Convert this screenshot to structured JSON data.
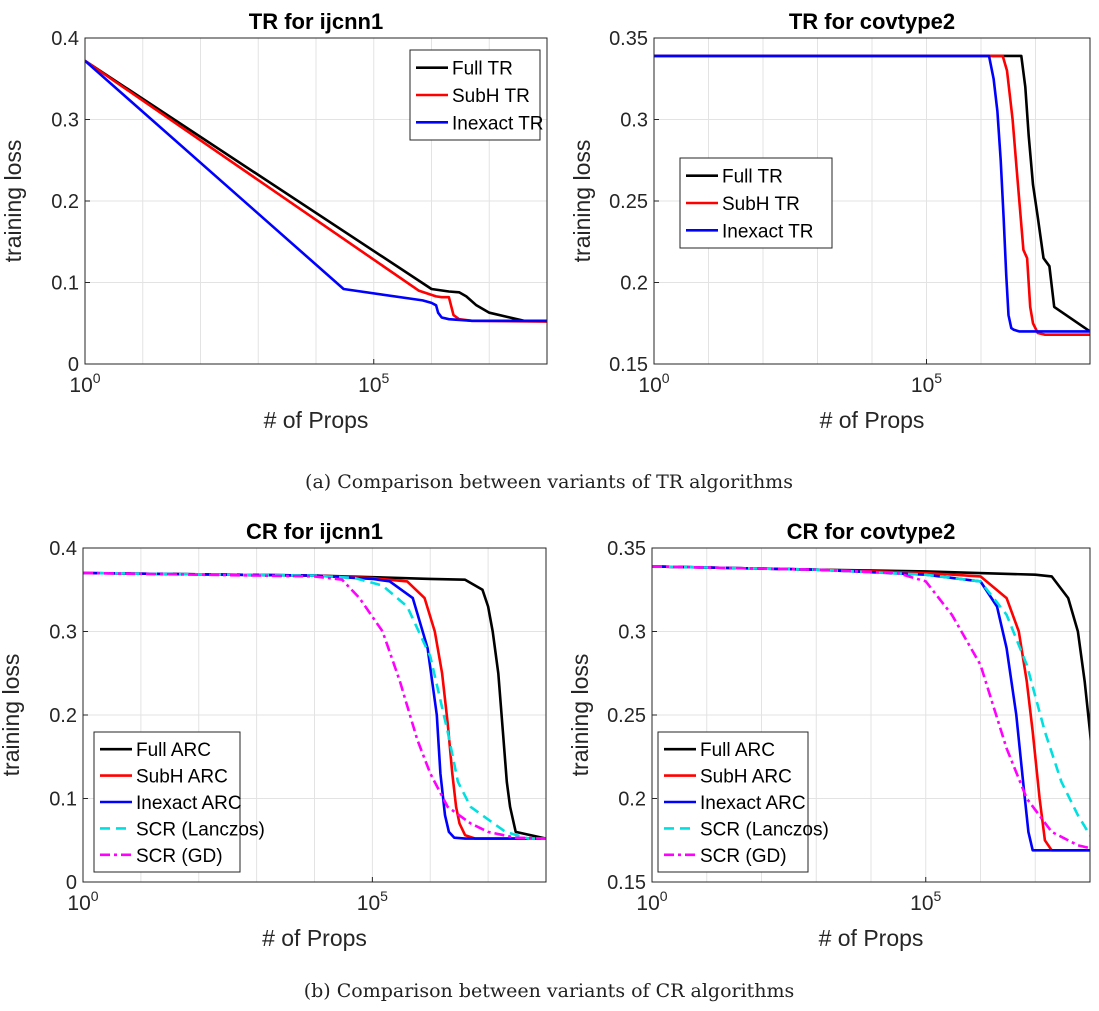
{
  "captions": {
    "a": "(a) Comparison between variants of TR algorithms",
    "b": "(b) Comparison between variants of CR algorithms"
  },
  "chart_data": [
    {
      "type": "line",
      "title": "TR for ijcnn1",
      "xlabel": "# of Props",
      "ylabel": "training loss",
      "xscale": "log",
      "xlim": [
        1,
        100000000
      ],
      "ylim": [
        0,
        0.4
      ],
      "xticks": [
        {
          "v": 1,
          "base": "10",
          "exp": "0"
        },
        {
          "v": 100000,
          "base": "10",
          "exp": "5"
        }
      ],
      "yticks": [
        "0",
        "0.1",
        "0.2",
        "0.3",
        "0.4"
      ],
      "grid": true,
      "legend": "top-right",
      "series": [
        {
          "name": "Full TR",
          "color": "#000000",
          "dash": "",
          "x": [
            1,
            1000000,
            2000000,
            3000000,
            4000000,
            6000000,
            10000000,
            40000000,
            100000000
          ],
          "y": [
            0.372,
            0.092,
            0.089,
            0.088,
            0.083,
            0.072,
            0.063,
            0.053,
            0.053
          ]
        },
        {
          "name": "SubH TR",
          "color": "#ff0000",
          "dash": "",
          "x": [
            1,
            600000,
            1200000,
            1500000,
            2000000,
            2400000,
            3000000,
            5000000,
            100000000
          ],
          "y": [
            0.372,
            0.09,
            0.083,
            0.082,
            0.082,
            0.06,
            0.055,
            0.053,
            0.052
          ]
        },
        {
          "name": "Inexact TR",
          "color": "#0000ff",
          "dash": "",
          "x": [
            1,
            30000,
            700000,
            1000000,
            1200000,
            1300000,
            1500000,
            2000000,
            5000000,
            100000000
          ],
          "y": [
            0.372,
            0.092,
            0.078,
            0.075,
            0.072,
            0.063,
            0.057,
            0.055,
            0.053,
            0.053
          ]
        }
      ]
    },
    {
      "type": "line",
      "title": "TR for covtype2",
      "xlabel": "# of Props",
      "ylabel": "training loss",
      "xscale": "log",
      "xlim": [
        1,
        100000000
      ],
      "ylim": [
        0.15,
        0.35
      ],
      "xticks": [
        {
          "v": 1,
          "base": "10",
          "exp": "0"
        },
        {
          "v": 100000,
          "base": "10",
          "exp": "5"
        }
      ],
      "yticks": [
        "0.15",
        "0.2",
        "0.25",
        "0.3",
        "0.35"
      ],
      "grid": true,
      "legend": "center-left",
      "series": [
        {
          "name": "Full TR",
          "color": "#000000",
          "dash": "",
          "x": [
            1,
            4000000,
            5500000,
            6500000,
            7500000,
            9000000,
            11000000,
            14000000,
            18000000,
            22000000,
            100000000,
            200000000
          ],
          "y": [
            0.339,
            0.339,
            0.339,
            0.32,
            0.29,
            0.26,
            0.24,
            0.215,
            0.21,
            0.185,
            0.17,
            0.17
          ]
        },
        {
          "name": "SubH TR",
          "color": "#ff0000",
          "dash": "",
          "x": [
            1,
            2000000,
            2500000,
            3000000,
            3800000,
            4500000,
            5200000,
            6000000,
            7000000,
            8000000,
            9000000,
            11000000,
            15000000,
            200000000
          ],
          "y": [
            0.339,
            0.339,
            0.339,
            0.33,
            0.3,
            0.27,
            0.245,
            0.22,
            0.215,
            0.185,
            0.175,
            0.169,
            0.168,
            0.168
          ]
        },
        {
          "name": "Inexact TR",
          "color": "#0000ff",
          "dash": "",
          "x": [
            1,
            1400000,
            1700000,
            2000000,
            2300000,
            2600000,
            2900000,
            3200000,
            3600000,
            4000000,
            5000000,
            7000000,
            200000000
          ],
          "y": [
            0.339,
            0.339,
            0.325,
            0.305,
            0.275,
            0.24,
            0.205,
            0.18,
            0.172,
            0.171,
            0.17,
            0.17,
            0.17
          ]
        }
      ]
    },
    {
      "type": "line",
      "title": "CR for ijcnn1",
      "xlabel": "# of Props",
      "ylabel": "training loss",
      "xscale": "log",
      "xlim": [
        1,
        100000000
      ],
      "ylim": [
        0,
        0.4
      ],
      "xticks": [
        {
          "v": 1,
          "base": "10",
          "exp": "0"
        },
        {
          "v": 100000,
          "base": "10",
          "exp": "5"
        }
      ],
      "yticks": [
        "0",
        "0.1",
        "0.2",
        "0.3",
        "0.4"
      ],
      "grid": true,
      "legend": "bottom-left",
      "series": [
        {
          "name": "Full ARC",
          "color": "#000000",
          "dash": "",
          "x": [
            1,
            10000,
            100000,
            1000000,
            4000000,
            8000000,
            10000000,
            12000000,
            15000000,
            18000000,
            21000000,
            24000000,
            30000000,
            100000000
          ],
          "y": [
            0.37,
            0.367,
            0.365,
            0.363,
            0.362,
            0.35,
            0.33,
            0.3,
            0.25,
            0.18,
            0.12,
            0.09,
            0.06,
            0.052
          ]
        },
        {
          "name": "SubH ARC",
          "color": "#ff0000",
          "dash": "",
          "x": [
            1,
            10000,
            100000,
            400000,
            800000,
            1200000,
            1600000,
            2000000,
            2400000,
            2800000,
            3200000,
            4000000,
            6000000,
            100000000
          ],
          "y": [
            0.37,
            0.367,
            0.364,
            0.36,
            0.34,
            0.3,
            0.25,
            0.19,
            0.13,
            0.09,
            0.07,
            0.056,
            0.052,
            0.052
          ]
        },
        {
          "name": "Inexact ARC",
          "color": "#0000ff",
          "dash": "",
          "x": [
            1,
            10000,
            100000,
            200000,
            500000,
            900000,
            1300000,
            1500000,
            1800000,
            2100000,
            2600000,
            4000000,
            100000000
          ],
          "y": [
            0.37,
            0.367,
            0.363,
            0.36,
            0.34,
            0.28,
            0.2,
            0.13,
            0.08,
            0.06,
            0.053,
            0.052,
            0.052
          ]
        },
        {
          "name": "SCR (Lanczos)",
          "color": "#00e0e0",
          "dash": "10 6",
          "x": [
            1,
            10000,
            50000,
            150000,
            400000,
            1000000,
            2000000,
            3000000,
            5000000,
            10000000,
            20000000,
            50000000,
            100000000
          ],
          "y": [
            0.37,
            0.367,
            0.364,
            0.355,
            0.33,
            0.27,
            0.18,
            0.12,
            0.09,
            0.075,
            0.06,
            0.052,
            0.052
          ]
        },
        {
          "name": "SCR (GD)",
          "color": "#ff00ff",
          "dash": "10 4 3 4",
          "x": [
            1,
            10000,
            30000,
            60000,
            150000,
            300000,
            600000,
            1000000,
            2000000,
            5000000,
            10000000,
            30000000,
            100000000
          ],
          "y": [
            0.37,
            0.366,
            0.362,
            0.34,
            0.3,
            0.24,
            0.17,
            0.13,
            0.09,
            0.07,
            0.06,
            0.053,
            0.052
          ]
        }
      ]
    },
    {
      "type": "line",
      "title": "CR for covtype2",
      "xlabel": "# of Props",
      "ylabel": "training loss",
      "xscale": "log",
      "xlim": [
        1,
        100000000
      ],
      "ylim": [
        0.15,
        0.35
      ],
      "xticks": [
        {
          "v": 1,
          "base": "10",
          "exp": "0"
        },
        {
          "v": 100000,
          "base": "10",
          "exp": "5"
        }
      ],
      "yticks": [
        "0.15",
        "0.2",
        "0.25",
        "0.3",
        "0.35"
      ],
      "grid": true,
      "legend": "bottom-left",
      "series": [
        {
          "name": "Full ARC",
          "color": "#000000",
          "dash": "",
          "x": [
            1,
            1000,
            100000,
            10000000,
            20000000,
            40000000,
            60000000,
            80000000,
            100000000,
            120000000,
            150000000,
            200000000
          ],
          "y": [
            0.339,
            0.337,
            0.336,
            0.334,
            0.333,
            0.32,
            0.3,
            0.27,
            0.24,
            0.21,
            0.18,
            0.17
          ]
        },
        {
          "name": "SubH ARC",
          "color": "#ff0000",
          "dash": "",
          "x": [
            1,
            1000,
            100000,
            1000000,
            3000000,
            5000000,
            7000000,
            9000000,
            12000000,
            15000000,
            20000000,
            200000000
          ],
          "y": [
            0.339,
            0.337,
            0.335,
            0.333,
            0.32,
            0.3,
            0.27,
            0.24,
            0.2,
            0.175,
            0.169,
            0.169
          ]
        },
        {
          "name": "Inexact ARC",
          "color": "#0000ff",
          "dash": "",
          "x": [
            1,
            1000,
            100000,
            1000000,
            2000000,
            3000000,
            4500000,
            6000000,
            7500000,
            9000000,
            200000000
          ],
          "y": [
            0.339,
            0.337,
            0.334,
            0.33,
            0.315,
            0.29,
            0.25,
            0.21,
            0.18,
            0.169,
            0.169
          ]
        },
        {
          "name": "SCR (Lanczos)",
          "color": "#00e0e0",
          "dash": "10 6",
          "x": [
            1,
            1000,
            100000,
            1000000,
            3000000,
            7000000,
            15000000,
            30000000,
            60000000,
            100000000,
            200000000
          ],
          "y": [
            0.339,
            0.337,
            0.334,
            0.33,
            0.31,
            0.28,
            0.24,
            0.21,
            0.19,
            0.178,
            0.169
          ]
        },
        {
          "name": "SCR (GD)",
          "color": "#ff00ff",
          "dash": "10 4 3 4",
          "x": [
            1,
            1000,
            30000,
            100000,
            300000,
            1000000,
            3000000,
            7000000,
            20000000,
            60000000,
            200000000
          ],
          "y": [
            0.339,
            0.337,
            0.335,
            0.33,
            0.31,
            0.28,
            0.23,
            0.2,
            0.18,
            0.172,
            0.168
          ]
        }
      ]
    }
  ]
}
